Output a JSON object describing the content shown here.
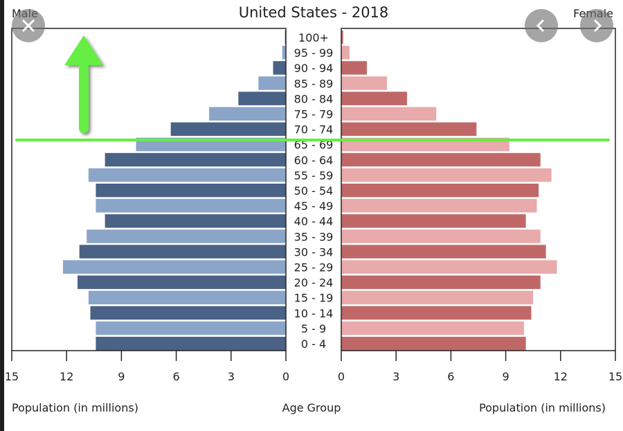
{
  "overlay": {
    "close_icon": "close-icon",
    "prev_icon": "chevron-left-icon",
    "next_icon": "chevron-right-icon",
    "annotation_arrow": "up-arrow-icon",
    "annotation_color": "#66ee44"
  },
  "colors": {
    "male_dark": "#4a6285",
    "male_light": "#8aa5c8",
    "female_dark": "#c06868",
    "female_light": "#e8aaaa"
  },
  "chart_data": {
    "type": "bar",
    "subtype": "population-pyramid",
    "title": "United States - 2018",
    "left_label": "Male",
    "right_label": "Female",
    "xlabel_left": "Population (in millions)",
    "xlabel_center": "Age Group",
    "xlabel_right": "Population (in millions)",
    "xlim": [
      0,
      15
    ],
    "xticks": [
      0,
      3,
      6,
      9,
      12,
      15
    ],
    "grid": false,
    "categories": [
      "100+",
      "95 - 99",
      "90 - 94",
      "85 - 89",
      "80 - 84",
      "75 - 79",
      "70 - 74",
      "65 - 69",
      "60 - 64",
      "55 - 59",
      "50 - 54",
      "45 - 49",
      "40 - 44",
      "35 - 39",
      "30 - 34",
      "25 - 29",
      "20 - 24",
      "15 - 19",
      "10 - 14",
      "5 - 9",
      "0 - 4"
    ],
    "series": [
      {
        "name": "Male",
        "values": [
          0.05,
          0.2,
          0.7,
          1.5,
          2.6,
          4.2,
          6.3,
          8.2,
          9.9,
          10.8,
          10.4,
          10.4,
          9.9,
          10.9,
          11.3,
          12.2,
          11.4,
          10.8,
          10.7,
          10.4,
          10.4
        ]
      },
      {
        "name": "Female",
        "values": [
          0.1,
          0.45,
          1.4,
          2.5,
          3.6,
          5.2,
          7.4,
          9.2,
          10.9,
          11.5,
          10.8,
          10.7,
          10.1,
          10.9,
          11.2,
          11.8,
          10.9,
          10.5,
          10.4,
          10.0,
          10.1
        ]
      }
    ],
    "annotations": [
      {
        "type": "horizontal-line",
        "between": [
          "70 - 74",
          "65 - 69"
        ],
        "color": "#66ee44"
      },
      {
        "type": "arrow",
        "direction": "up",
        "color": "#66ee44"
      }
    ]
  }
}
